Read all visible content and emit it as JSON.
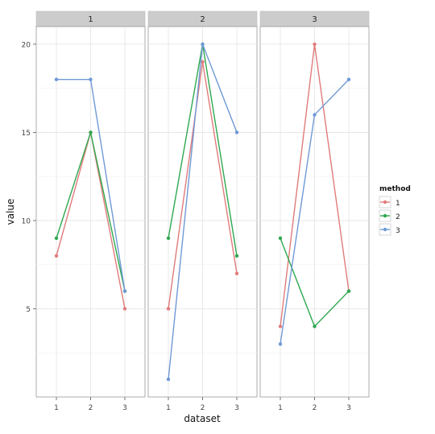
{
  "chart_data": {
    "type": "line",
    "facet_label": "",
    "xlabel": "dataset",
    "ylabel": "value",
    "x": [
      1,
      2,
      3
    ],
    "xticks": [
      "1",
      "2",
      "3"
    ],
    "ylim": [
      0,
      21
    ],
    "yticks": [
      5,
      10,
      15,
      20
    ],
    "yticklabels": [
      "5",
      "10",
      "15",
      "20"
    ],
    "grid": true,
    "legend_title": "method",
    "legend_placement": "right",
    "series_colors": [
      "#e07b7b",
      "#2fa84f",
      "#6f99d6"
    ],
    "panels": [
      {
        "strip": "1",
        "series": [
          {
            "name": "1",
            "values": [
              8,
              15,
              5
            ]
          },
          {
            "name": "2",
            "values": [
              9,
              15,
              6
            ]
          },
          {
            "name": "3",
            "values": [
              18,
              18,
              6
            ]
          }
        ]
      },
      {
        "strip": "2",
        "series": [
          {
            "name": "1",
            "values": [
              5,
              19,
              7
            ]
          },
          {
            "name": "2",
            "values": [
              9,
              20,
              8
            ]
          },
          {
            "name": "3",
            "values": [
              1,
              20,
              15
            ]
          }
        ]
      },
      {
        "strip": "3",
        "series": [
          {
            "name": "1",
            "values": [
              4,
              20,
              6
            ]
          },
          {
            "name": "2",
            "values": [
              9,
              4,
              6
            ]
          },
          {
            "name": "3",
            "values": [
              3,
              16,
              18
            ]
          }
        ]
      }
    ]
  }
}
